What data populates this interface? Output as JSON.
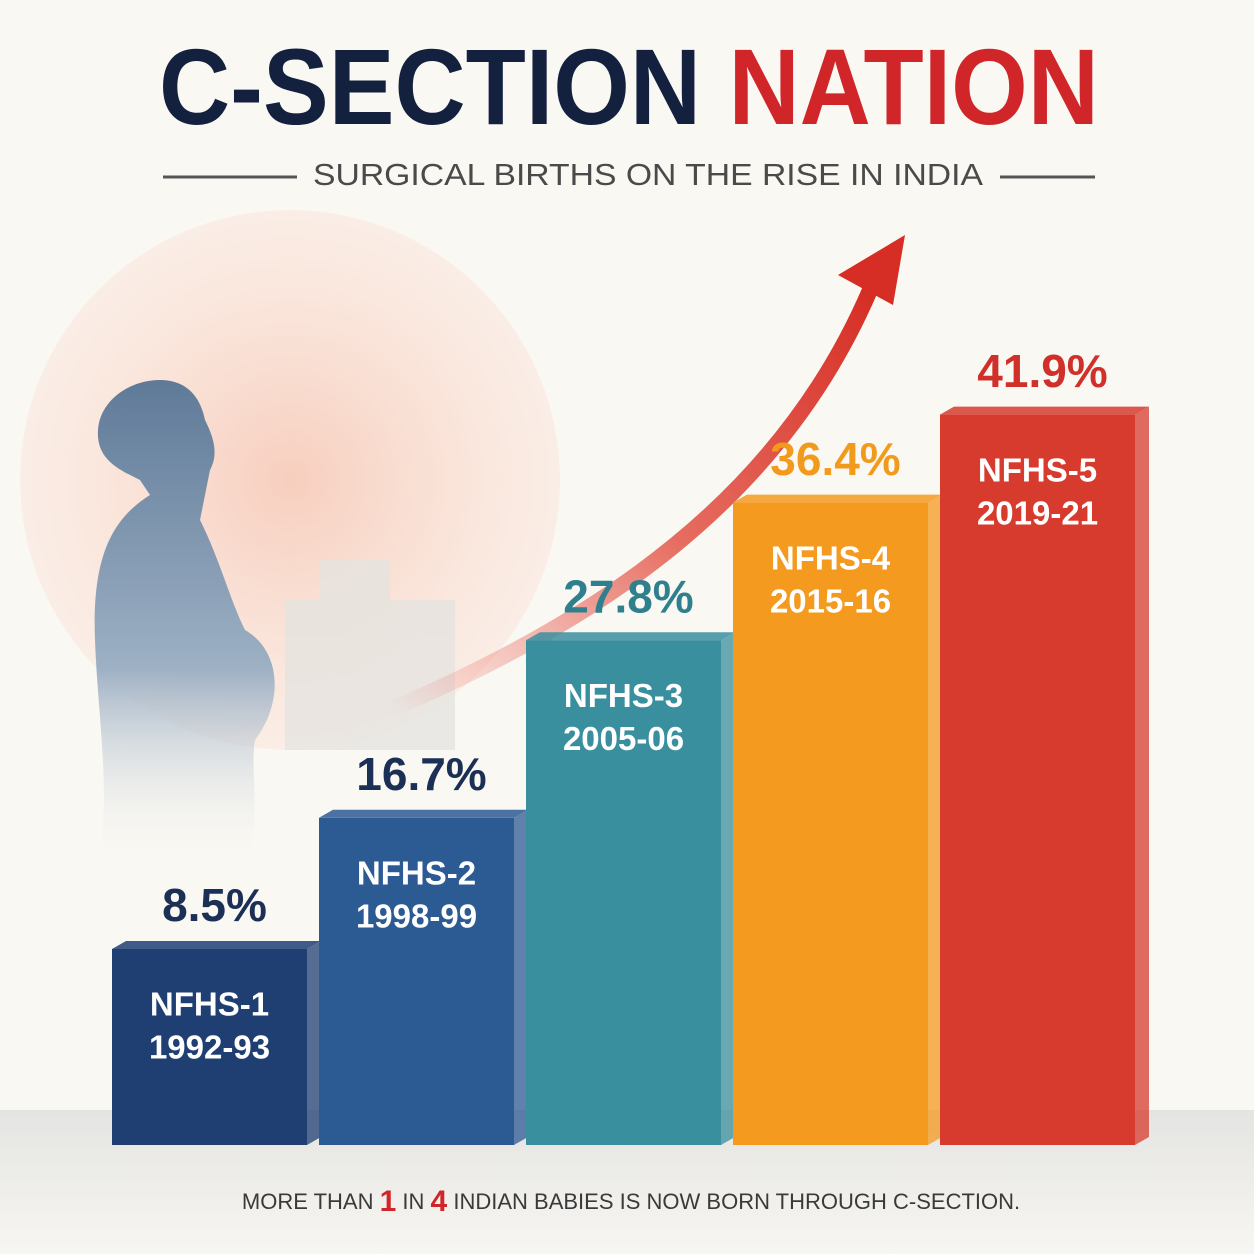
{
  "chart_data": {
    "type": "bar",
    "title": "C-SECTION",
    "title_highlight": "NATION",
    "subtitle": "SURGICAL BIRTHS ON THE RISE IN INDIA",
    "categories": [
      "NFHS-1",
      "NFHS-2",
      "NFHS-3",
      "NFHS-4",
      "NFHS-5"
    ],
    "periods": [
      "1992-93",
      "1998-99",
      "2005-06",
      "2015-16",
      "2019-21"
    ],
    "values": [
      8.5,
      16.7,
      27.8,
      36.4,
      41.9
    ],
    "value_labels": [
      "8.5%",
      "16.7%",
      "27.8%",
      "36.4%",
      "41.9%"
    ],
    "colors": [
      "#1f3f73",
      "#2c5a93",
      "#3a8f9f",
      "#f39a1f",
      "#d63b2e"
    ],
    "label_colors": [
      "#1c2f55",
      "#1c2f55",
      "#2f7f8c",
      "#f29a1c",
      "#d0302a"
    ],
    "footnote": [
      "MORE THAN",
      "1",
      "IN",
      "4",
      "INDIAN BABIES IS NOW BORN THROUGH C-SECTION."
    ]
  }
}
